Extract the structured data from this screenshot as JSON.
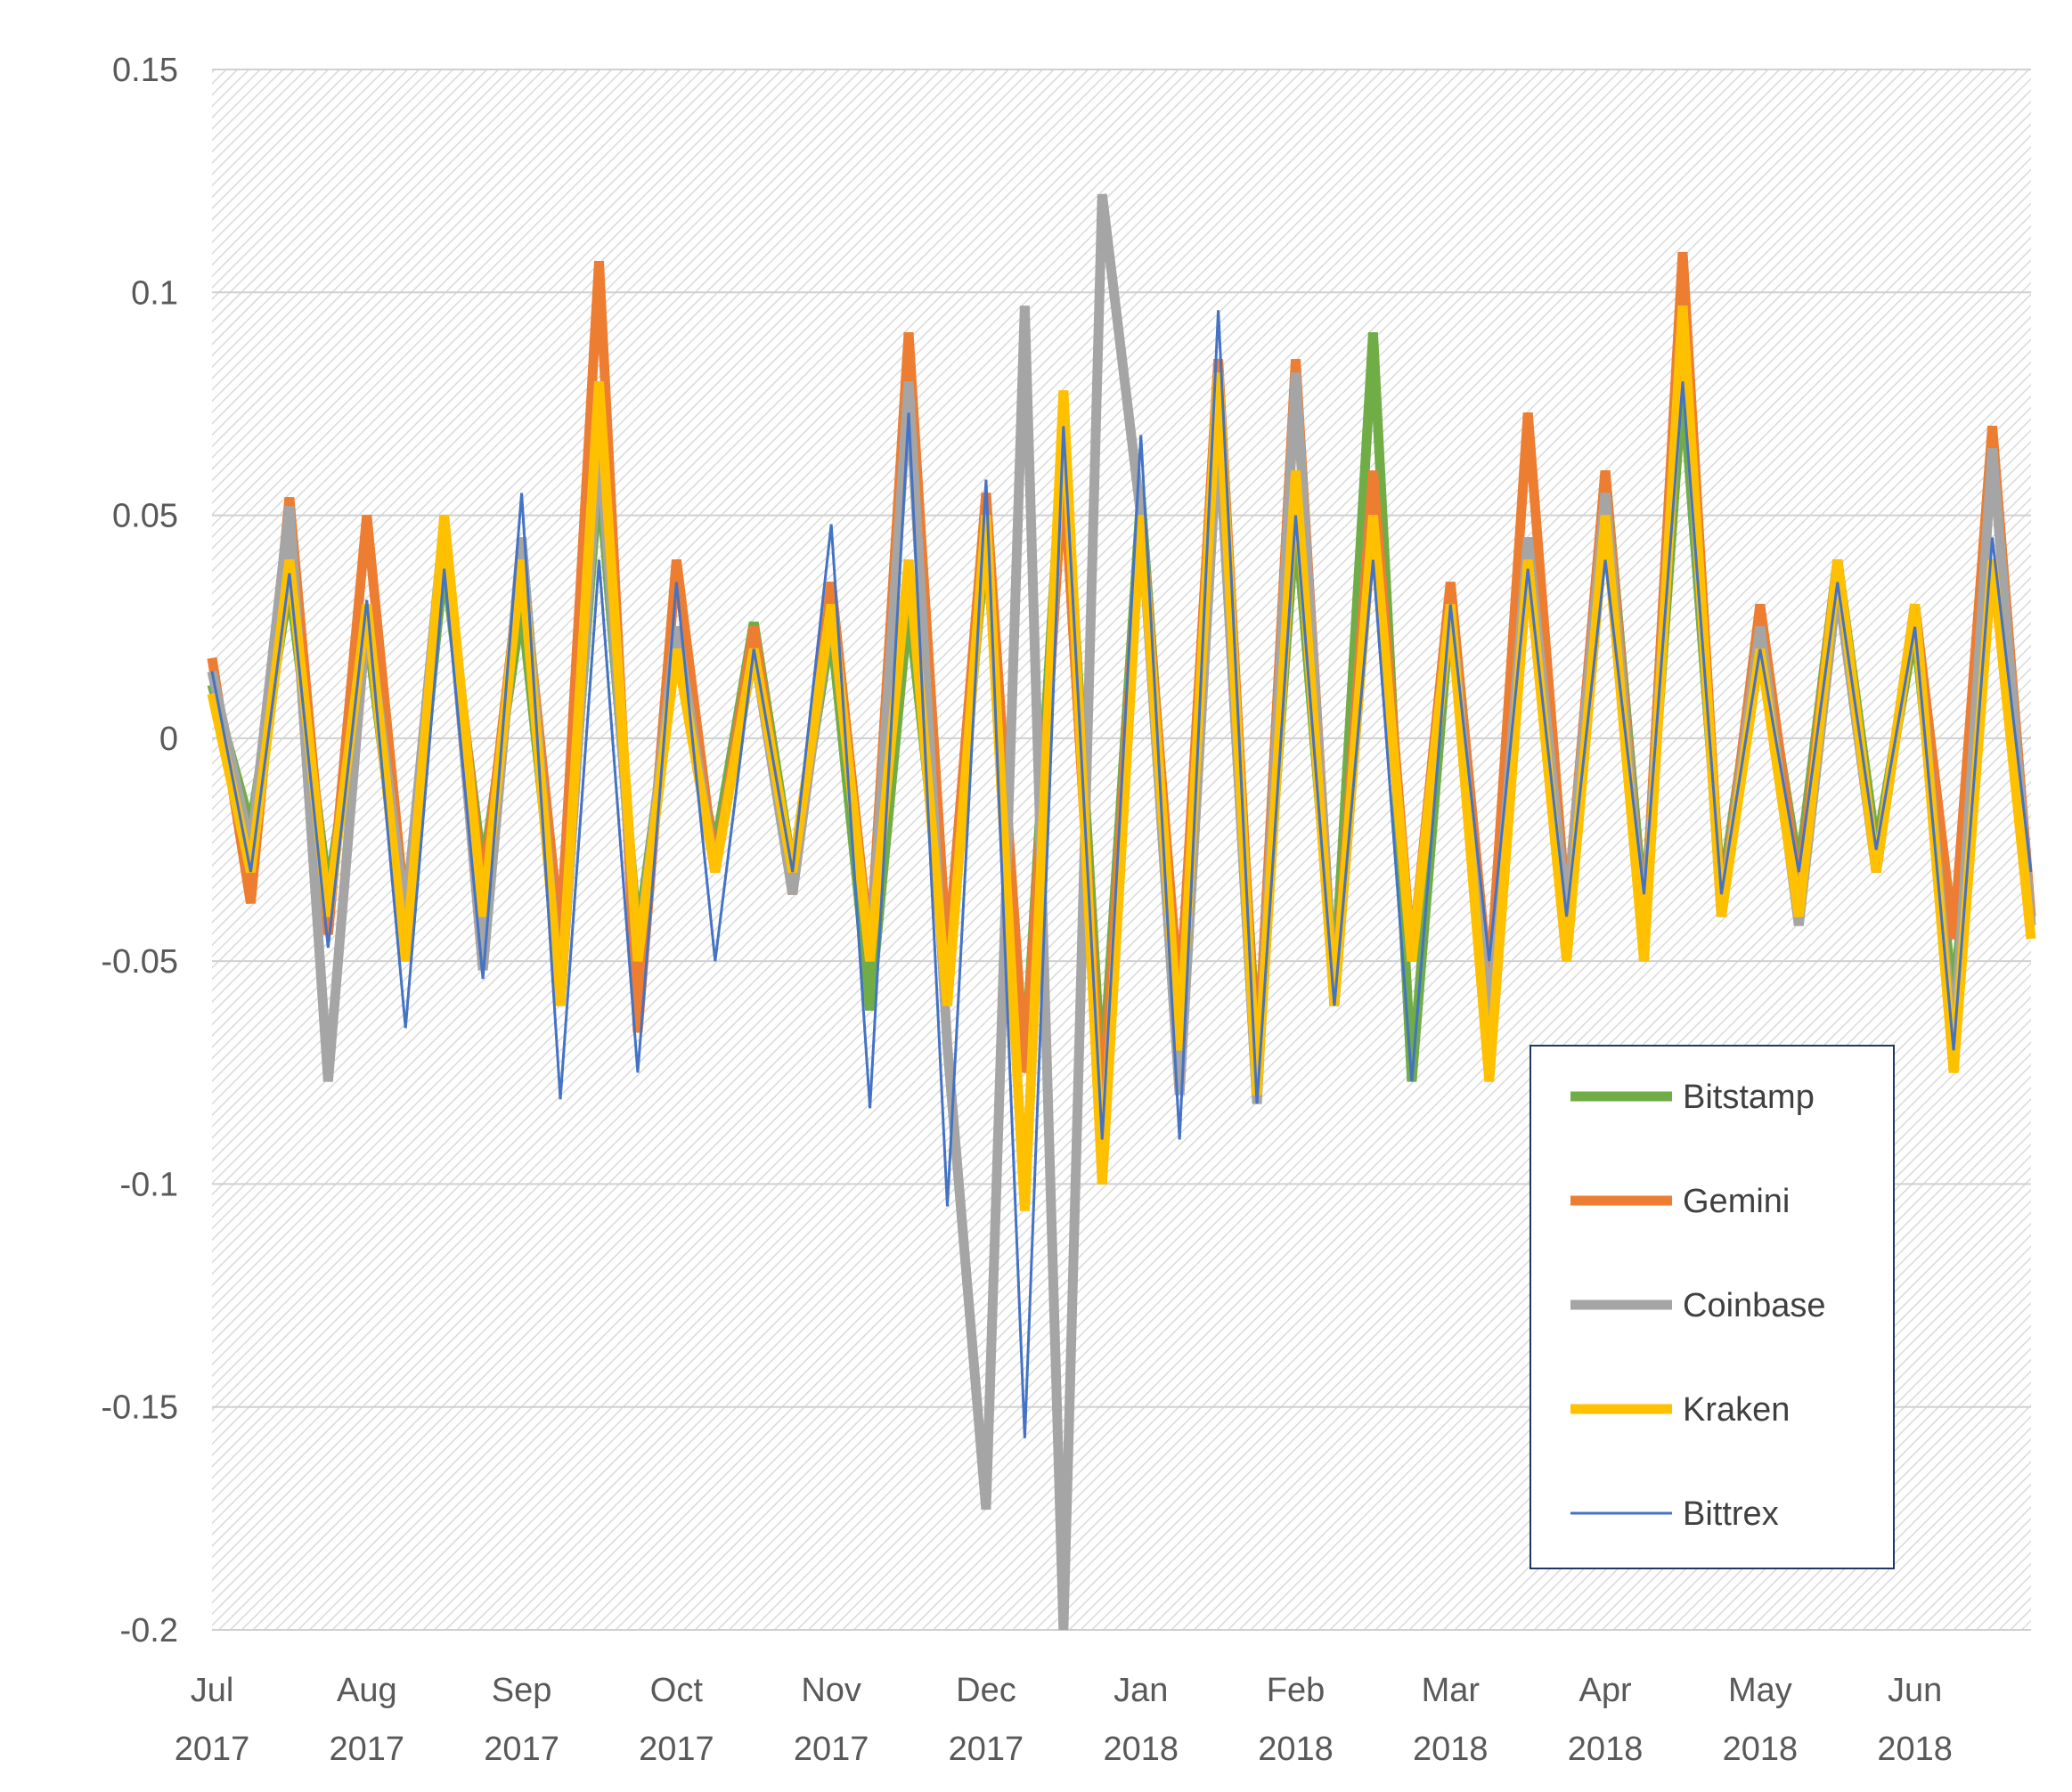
{
  "chart_data": {
    "type": "line",
    "categories": [
      "Jul 2017",
      null,
      null,
      null,
      "Aug 2017",
      null,
      null,
      null,
      "Sep 2017",
      null,
      null,
      null,
      "Oct 2017",
      null,
      null,
      null,
      "Nov 2017",
      null,
      null,
      null,
      "Dec 2017",
      null,
      null,
      null,
      "Jan 2018",
      null,
      null,
      null,
      "Feb 2018",
      null,
      null,
      null,
      "Mar 2018",
      null,
      null,
      null,
      "Apr 2018",
      null,
      null,
      null,
      "May 2018",
      null,
      null,
      null,
      "Jun 2018",
      null,
      null,
      null
    ],
    "series": [
      {
        "name": "Bitstamp",
        "color": "#70ad47",
        "values": [
          0.012,
          -0.02,
          0.035,
          -0.035,
          0.025,
          -0.044,
          0.04,
          -0.03,
          0.03,
          -0.052,
          0.06,
          -0.045,
          0.02,
          -0.025,
          0.026,
          -0.03,
          0.025,
          -0.061,
          0.03,
          -0.05,
          0.045,
          -0.074,
          0.07,
          -0.078,
          0.054,
          -0.065,
          0.07,
          -0.07,
          0.05,
          -0.055,
          0.091,
          -0.077,
          0.03,
          -0.06,
          0.04,
          -0.045,
          0.06,
          -0.04,
          0.08,
          -0.035,
          0.025,
          -0.03,
          0.04,
          -0.025,
          0.025,
          -0.06,
          0.04,
          -0.04
        ]
      },
      {
        "name": "Gemini",
        "color": "#ed7d31",
        "values": [
          0.018,
          -0.037,
          0.054,
          -0.044,
          0.05,
          -0.04,
          0.046,
          -0.035,
          0.04,
          -0.045,
          0.107,
          -0.066,
          0.04,
          -0.03,
          0.025,
          -0.035,
          0.035,
          -0.048,
          0.091,
          -0.05,
          0.055,
          -0.075,
          0.06,
          -0.085,
          0.05,
          -0.06,
          0.085,
          -0.075,
          0.085,
          -0.06,
          0.06,
          -0.05,
          0.035,
          -0.057,
          0.073,
          -0.04,
          0.06,
          -0.045,
          0.109,
          -0.04,
          0.03,
          -0.035,
          0.04,
          -0.03,
          0.03,
          -0.045,
          0.07,
          -0.04
        ]
      },
      {
        "name": "Coinbase",
        "color": "#a5a5a5",
        "values": [
          0.015,
          -0.025,
          0.052,
          -0.077,
          0.028,
          -0.04,
          0.049,
          -0.052,
          0.045,
          -0.06,
          0.068,
          -0.05,
          0.025,
          -0.03,
          0.02,
          -0.035,
          0.03,
          -0.05,
          0.08,
          -0.069,
          -0.173,
          0.097,
          -0.2,
          0.122,
          0.05,
          -0.08,
          0.07,
          -0.082,
          0.082,
          -0.06,
          0.05,
          -0.05,
          0.03,
          -0.065,
          0.045,
          -0.04,
          0.055,
          -0.045,
          0.095,
          -0.04,
          0.025,
          -0.042,
          0.035,
          -0.03,
          0.03,
          -0.07,
          0.065,
          -0.042
        ]
      },
      {
        "name": "Kraken",
        "color": "#ffc000",
        "values": [
          0.01,
          -0.03,
          0.04,
          -0.04,
          0.03,
          -0.05,
          0.05,
          -0.04,
          0.04,
          -0.06,
          0.08,
          -0.05,
          0.02,
          -0.03,
          0.02,
          -0.03,
          0.03,
          -0.05,
          0.04,
          -0.06,
          0.05,
          -0.106,
          0.078,
          -0.1,
          0.05,
          -0.07,
          0.082,
          -0.08,
          0.06,
          -0.06,
          0.05,
          -0.05,
          0.03,
          -0.077,
          0.04,
          -0.05,
          0.05,
          -0.05,
          0.097,
          -0.04,
          0.02,
          -0.04,
          0.04,
          -0.03,
          0.03,
          -0.075,
          0.04,
          -0.045
        ]
      },
      {
        "name": "Bittrex",
        "color": "#4472c4",
        "values": [
          0.015,
          -0.03,
          0.037,
          -0.047,
          0.031,
          -0.065,
          0.038,
          -0.054,
          0.055,
          -0.081,
          0.04,
          -0.075,
          0.035,
          -0.05,
          0.02,
          -0.03,
          0.048,
          -0.083,
          0.073,
          -0.105,
          0.058,
          -0.157,
          0.07,
          -0.09,
          0.068,
          -0.09,
          0.096,
          -0.082,
          0.05,
          -0.06,
          0.04,
          -0.077,
          0.03,
          -0.05,
          0.038,
          -0.04,
          0.04,
          -0.035,
          0.08,
          -0.035,
          0.02,
          -0.03,
          0.035,
          -0.025,
          0.025,
          -0.07,
          0.045,
          -0.03
        ]
      }
    ],
    "ylim": [
      -0.2,
      0.15
    ],
    "yticks": [
      -0.2,
      -0.15,
      -0.1,
      -0.05,
      0,
      0.05,
      0.1,
      0.15
    ],
    "grid": true,
    "legend": "lower right"
  }
}
